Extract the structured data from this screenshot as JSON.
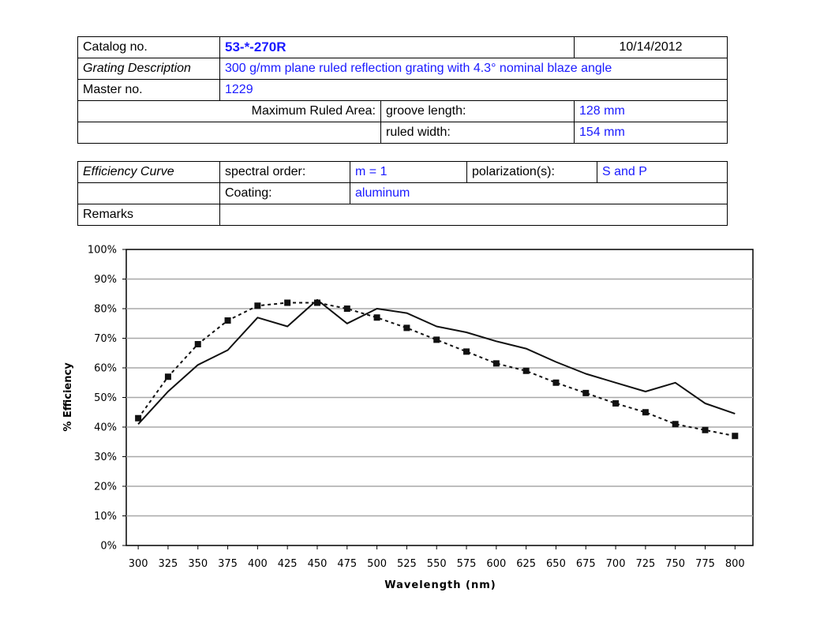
{
  "spec": {
    "catalog_label": "Catalog no.",
    "catalog_value": "53-*-270R",
    "date": "10/14/2012",
    "grating_label": "Grating Description",
    "grating_value": "300 g/mm plane ruled reflection grating with 4.3° nominal blaze angle",
    "master_label": "Master no.",
    "master_value": "1229",
    "max_area_label": "Maximum Ruled Area:",
    "groove_label": "groove length:",
    "groove_value": "128 mm",
    "ruled_label": "ruled width:",
    "ruled_value": "154 mm"
  },
  "efficiency": {
    "curve_label": "Efficiency Curve",
    "order_label": "spectral order:",
    "order_value": "m = 1",
    "pol_label": "polarization(s):",
    "pol_value": "S and P",
    "coating_label": "Coating:",
    "coating_value": "aluminum",
    "remarks_label": "Remarks",
    "remarks_value": ""
  },
  "chart_data": {
    "type": "line",
    "xlabel": "Wavelength (nm)",
    "ylabel": "% Efficiency",
    "x_ticks": [
      300,
      325,
      350,
      375,
      400,
      425,
      450,
      475,
      500,
      525,
      550,
      575,
      600,
      625,
      650,
      675,
      700,
      725,
      750,
      775,
      800
    ],
    "y_ticks": [
      0,
      10,
      20,
      30,
      40,
      50,
      60,
      70,
      80,
      90,
      100
    ],
    "y_tick_labels": [
      "0%",
      "10%",
      "20%",
      "30%",
      "40%",
      "50%",
      "60%",
      "70%",
      "80%",
      "90%",
      "100%"
    ],
    "xlim": [
      290,
      815
    ],
    "ylim": [
      0,
      100
    ],
    "grid": "horizontal",
    "legend": "none",
    "series": [
      {
        "style": "solid",
        "x": [
          300,
          325,
          350,
          375,
          400,
          425,
          450,
          475,
          500,
          525,
          550,
          575,
          600,
          625,
          650,
          675,
          700,
          725,
          750,
          775,
          800
        ],
        "values": [
          41,
          52,
          61,
          66,
          77,
          74,
          83,
          75,
          80,
          78.5,
          74,
          72,
          69,
          66.5,
          62,
          58,
          55,
          52,
          55,
          48,
          44.5
        ]
      },
      {
        "style": "dotted-square-markers",
        "x": [
          300,
          325,
          350,
          375,
          400,
          425,
          450,
          475,
          500,
          525,
          550,
          575,
          600,
          625,
          650,
          675,
          700,
          725,
          750,
          775,
          800
        ],
        "values": [
          43,
          57,
          68,
          76,
          81,
          82,
          82,
          80,
          77,
          73.5,
          69.5,
          65.5,
          61.5,
          59,
          55,
          51.5,
          48,
          45,
          41,
          39,
          37
        ]
      }
    ]
  }
}
